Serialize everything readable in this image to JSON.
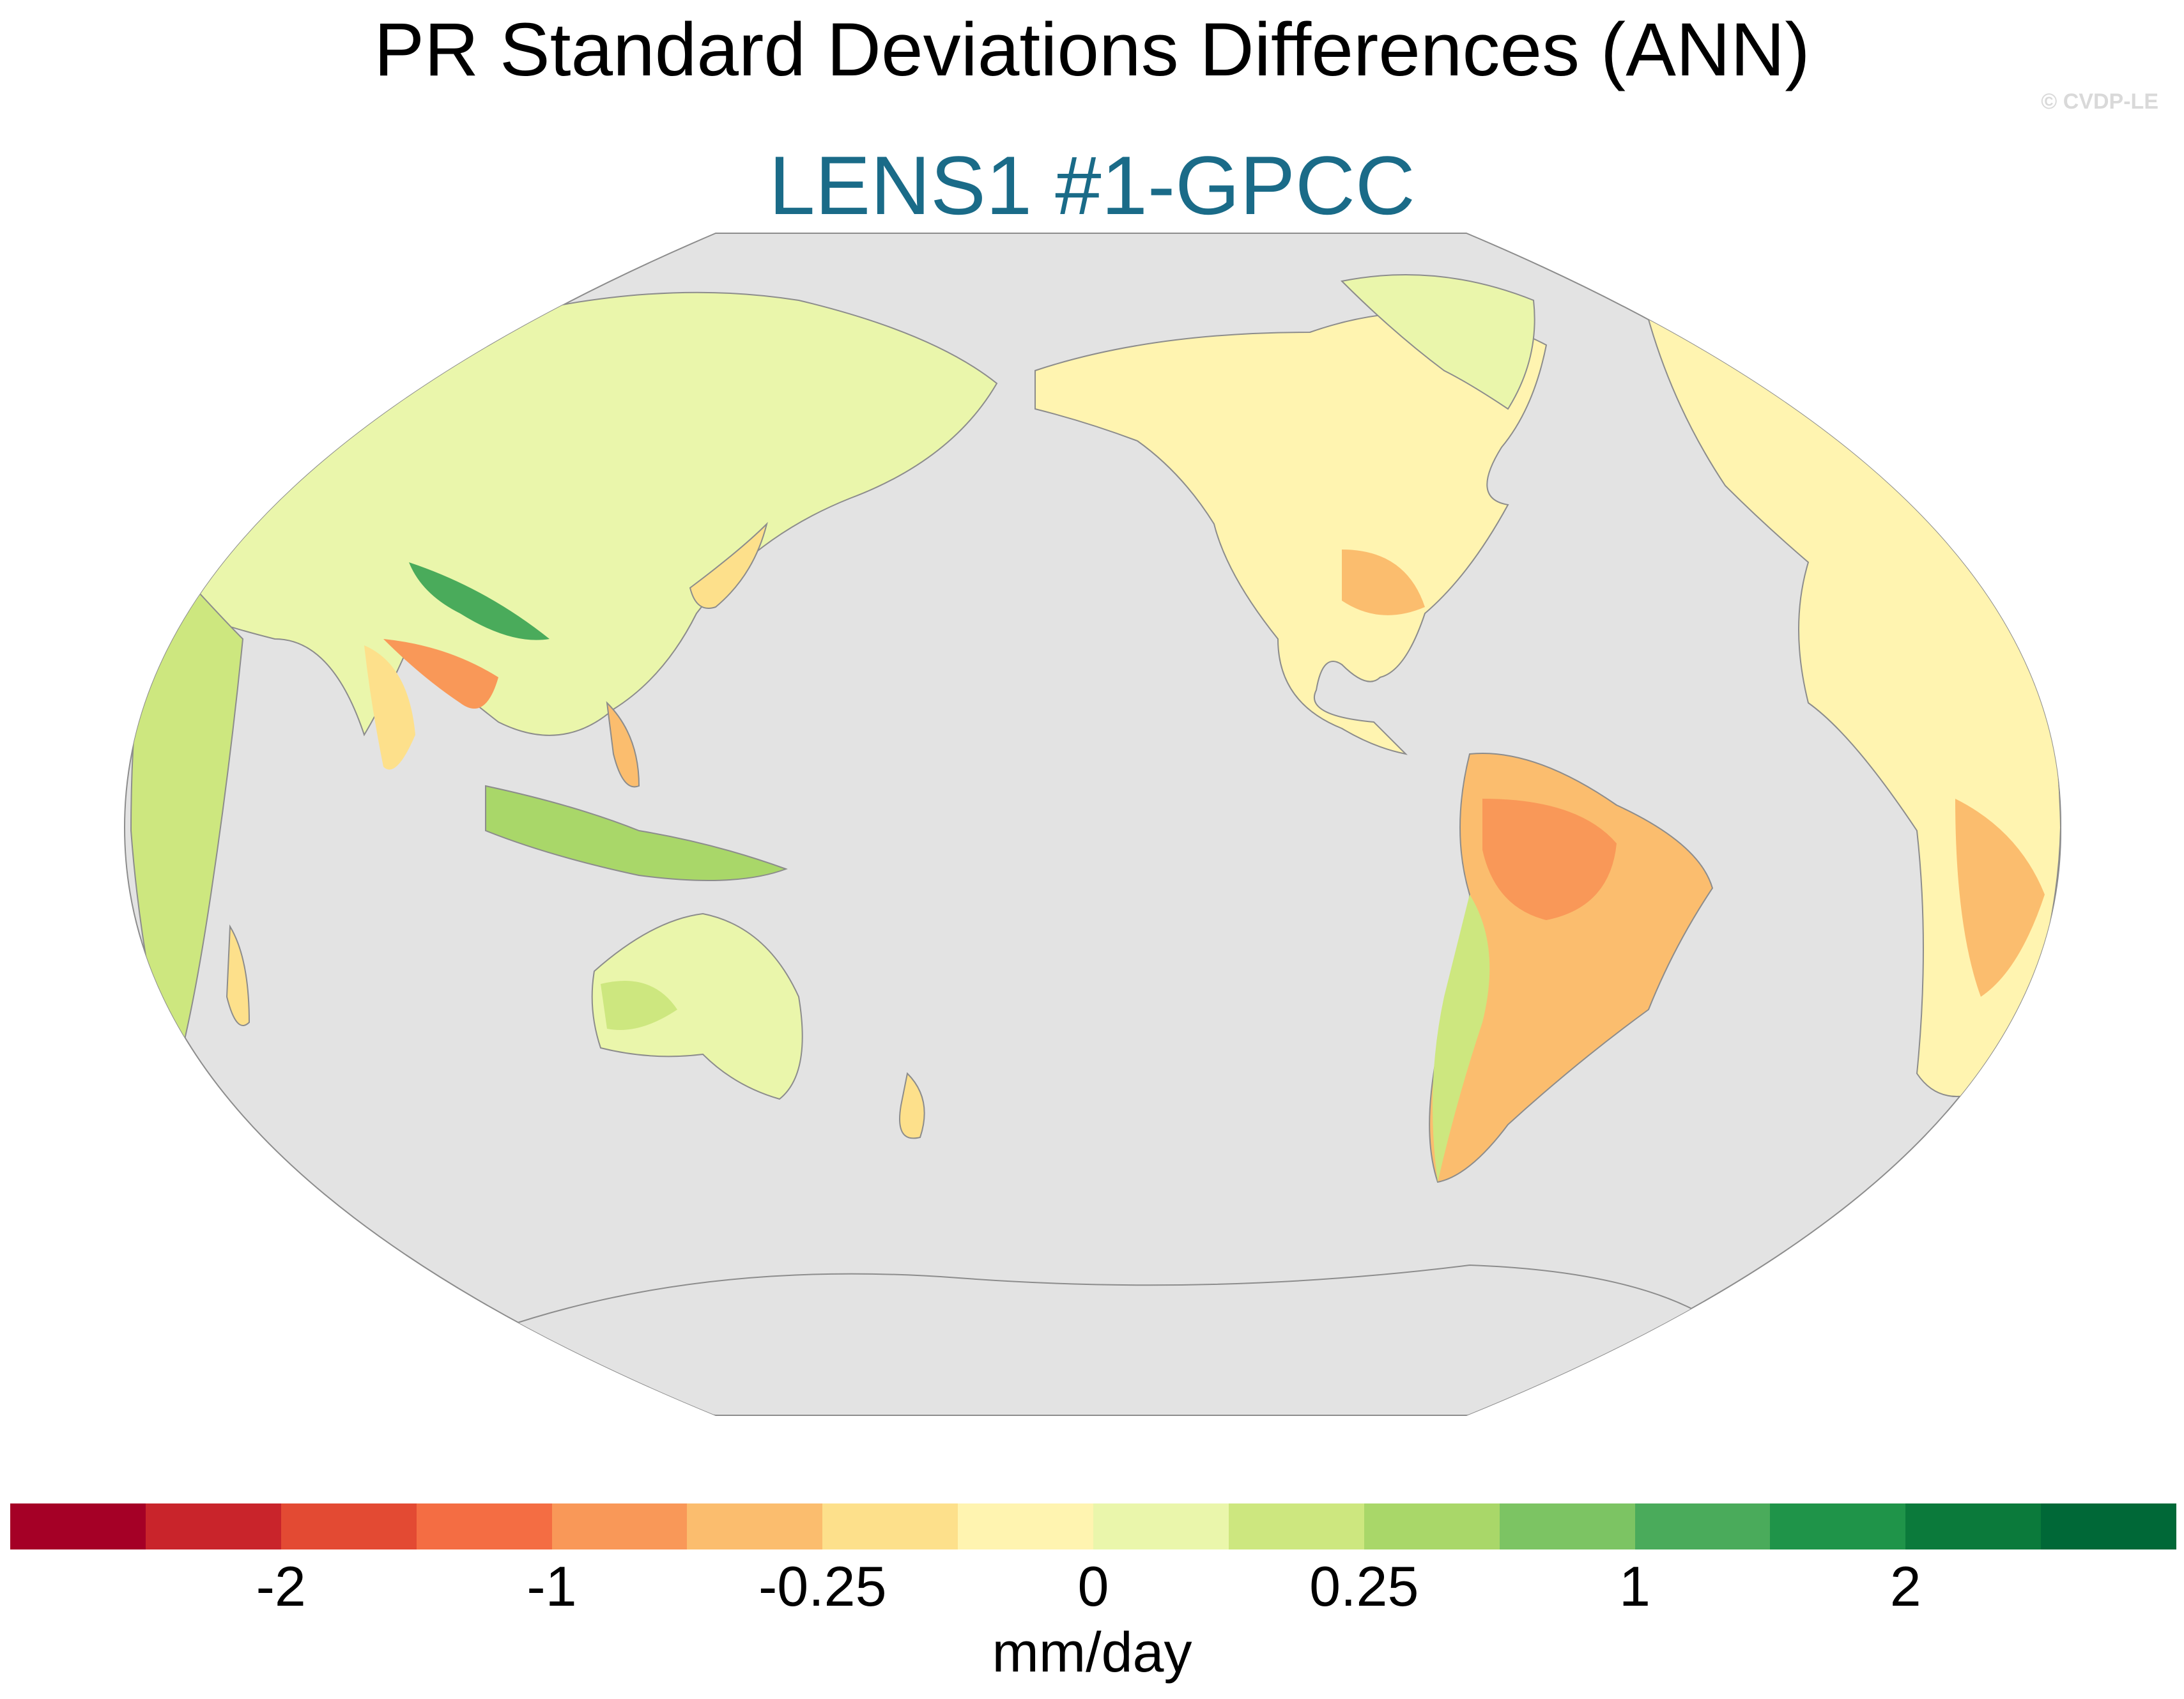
{
  "title": "PR Standard Deviations Differences (ANN)",
  "subtitle": "LENS1 #1-GPCC",
  "watermark": "© CVDP-LE",
  "colors": {
    "ocean": "#e3e3e3",
    "coast": "#8c8c8c",
    "subtitle": "#1a6b88"
  },
  "colorbar": {
    "units": "mm/day",
    "colors": [
      "#a50026",
      "#c9242b",
      "#e34a33",
      "#f46d43",
      "#f99858",
      "#fbbd6e",
      "#fde08b",
      "#fff4b0",
      "#eaf6ab",
      "#cde77f",
      "#a9d769",
      "#7cc463",
      "#4aab5b",
      "#1f9449",
      "#0b7a3b",
      "#006837"
    ],
    "tick_labels": [
      "-2",
      "-1",
      "-0.25",
      "0",
      "0.25",
      "1",
      "2"
    ],
    "tick_boundary_index": [
      2,
      4,
      6,
      8,
      10,
      12,
      14
    ]
  }
}
